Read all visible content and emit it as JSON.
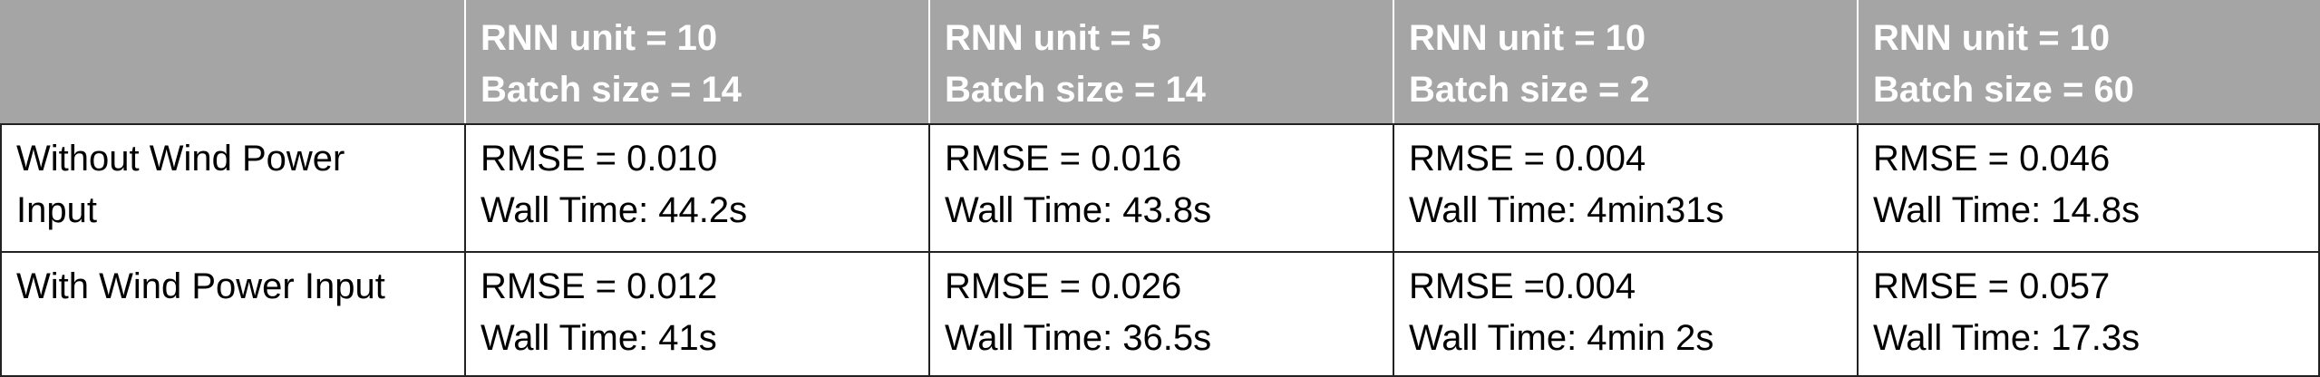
{
  "table": {
    "columns": [
      "",
      {
        "line1": "RNN unit = 10",
        "line2": "Batch size = 14"
      },
      {
        "line1": "RNN unit = 5",
        "line2": "Batch size = 14"
      },
      {
        "line1": "RNN unit = 10",
        "line2": "Batch size = 2"
      },
      {
        "line1": "RNN unit = 10",
        "line2": "Batch size = 60"
      }
    ],
    "rows": [
      {
        "label_line1": "Without Wind Power",
        "label_line2": "Input",
        "cells": [
          {
            "rmse": "RMSE = 0.010",
            "wall": "Wall Time: 44.2s"
          },
          {
            "rmse": "RMSE = 0.016",
            "wall": "Wall Time: 43.8s"
          },
          {
            "rmse": "RMSE = 0.004",
            "wall": "Wall Time: 4min31s"
          },
          {
            "rmse": "RMSE = 0.046",
            "wall": "Wall Time: 14.8s"
          }
        ]
      },
      {
        "label_line1": "With Wind Power Input",
        "label_line2": "",
        "cells": [
          {
            "rmse": "RMSE = 0.012",
            "wall": "Wall Time: 41s"
          },
          {
            "rmse": "RMSE = 0.026",
            "wall": "Wall Time: 36.5s"
          },
          {
            "rmse": "RMSE =0.004",
            "wall": "Wall Time: 4min 2s"
          },
          {
            "rmse": "RMSE = 0.057",
            "wall": "Wall Time: 17.3s"
          }
        ]
      }
    ]
  },
  "colors": {
    "header_bg": "#a5a5a5",
    "header_text": "#ffffff",
    "border": "#222222"
  }
}
